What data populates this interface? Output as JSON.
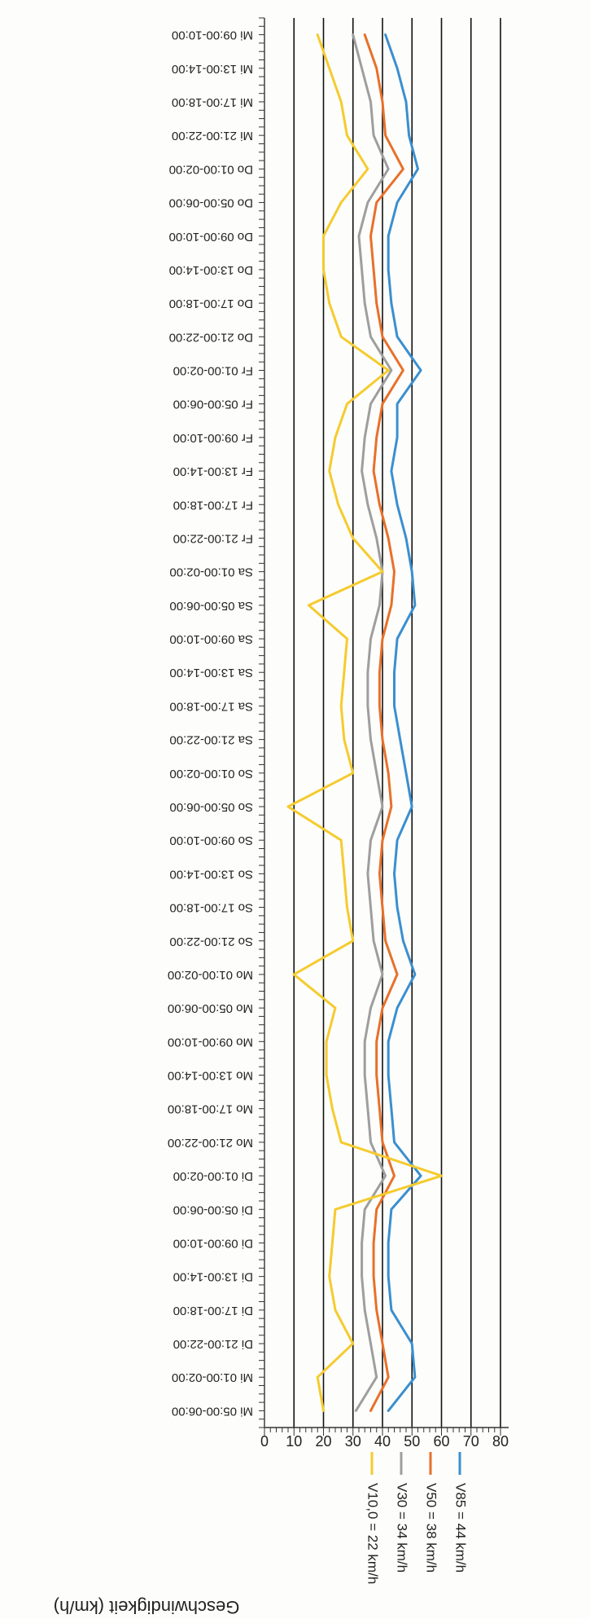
{
  "chart_data": {
    "type": "line",
    "title": "",
    "xlabel": "",
    "ylabel": "Geschwindigkeit (km/h)",
    "ylim": [
      0,
      80
    ],
    "yticks": [
      0,
      10,
      20,
      30,
      40,
      50,
      60,
      70,
      80
    ],
    "grid": true,
    "legend_placement": "right",
    "categories": [
      "Mi 09:00-10:00",
      "Mi 13:00-14:00",
      "Mi 17:00-18:00",
      "Mi 21:00-22:00",
      "Do 01:00-02:00",
      "Do 05:00-06:00",
      "Do 09:00-10:00",
      "Do 13:00-14:00",
      "Do 17:00-18:00",
      "Do 21:00-22:00",
      "Fr 01:00-02:00",
      "Fr 05:00-06:00",
      "Fr 09:00-10:00",
      "Fr 13:00-14:00",
      "Fr 17:00-18:00",
      "Fr 21:00-22:00",
      "Sa 01:00-02:00",
      "Sa 05:00-06:00",
      "Sa 09:00-10:00",
      "Sa 13:00-14:00",
      "Sa 17:00-18:00",
      "Sa 21:00-22:00",
      "So 01:00-02:00",
      "So 05:00-06:00",
      "So 09:00-10:00",
      "So 13:00-14:00",
      "So 17:00-18:00",
      "So 21:00-22:00",
      "Mo 01:00-02:00",
      "Mo 05:00-06:00",
      "Mo 09:00-10:00",
      "Mo 13:00-14:00",
      "Mo 17:00-18:00",
      "Mo 21:00-22:00",
      "Di 01:00-02:00",
      "Di 05:00-06:00",
      "Di 09:00-10:00",
      "Di 13:00-14:00",
      "Di 17:00-18:00",
      "Di 21:00-22:00",
      "Mi 01:00-02:00",
      "Mi 05:00-06:00"
    ],
    "series": [
      {
        "name": "V85 = 44 km/h",
        "color": "#3a8fd0",
        "values": [
          41,
          45,
          48,
          49,
          52,
          45,
          42,
          42,
          43,
          45,
          53,
          45,
          45,
          43,
          45,
          48,
          50,
          51,
          45,
          44,
          44,
          46,
          48,
          50,
          45,
          44,
          45,
          47,
          51,
          45,
          42,
          42,
          43,
          44,
          53,
          43,
          42,
          42,
          43,
          50,
          51,
          42
        ]
      },
      {
        "name": "V50 = 38 km/h",
        "color": "#e8702a",
        "values": [
          34,
          38,
          40,
          41,
          47,
          38,
          36,
          37,
          38,
          40,
          47,
          40,
          38,
          37,
          39,
          42,
          44,
          43,
          40,
          39,
          39,
          40,
          42,
          43,
          40,
          39,
          40,
          41,
          45,
          40,
          38,
          38,
          39,
          40,
          44,
          38,
          37,
          37,
          38,
          40,
          42,
          36
        ]
      },
      {
        "name": "V30 = 34 km/h",
        "color": "#9e9e9e",
        "values": [
          30,
          33,
          36,
          37,
          42,
          35,
          32,
          33,
          34,
          36,
          43,
          36,
          34,
          33,
          35,
          38,
          40,
          39,
          36,
          35,
          35,
          36,
          38,
          40,
          36,
          35,
          36,
          37,
          40,
          36,
          34,
          34,
          35,
          36,
          41,
          34,
          33,
          33,
          34,
          36,
          38,
          31
        ]
      },
      {
        "name": "V10,0 = 22 km/h",
        "color": "#f5cb2e",
        "values": [
          18,
          22,
          26,
          28,
          35,
          26,
          20,
          20,
          22,
          26,
          42,
          28,
          24,
          22,
          25,
          30,
          40,
          15,
          28,
          27,
          26,
          27,
          30,
          8,
          26,
          27,
          28,
          30,
          10,
          24,
          21,
          21,
          23,
          26,
          60,
          24,
          23,
          22,
          24,
          30,
          18,
          20
        ]
      }
    ]
  }
}
